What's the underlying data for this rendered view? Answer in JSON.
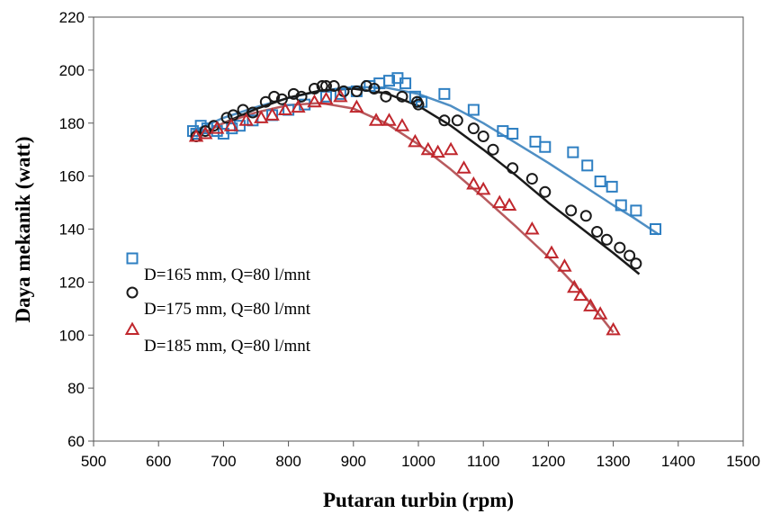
{
  "chart_data": {
    "type": "scatter",
    "title": "",
    "xlabel": "Putaran turbin (rpm)",
    "ylabel": "Daya mekanik (watt)",
    "xlim": [
      500,
      1500
    ],
    "ylim": [
      60,
      220
    ],
    "xticks": [
      500,
      600,
      700,
      800,
      900,
      1000,
      1100,
      1200,
      1300,
      1400,
      1500
    ],
    "yticks": [
      60,
      80,
      100,
      120,
      140,
      160,
      180,
      200,
      220
    ],
    "grid": false,
    "legend_position": "lower-left",
    "series": [
      {
        "name": "D=165 mm, Q=80 l/mnt",
        "marker": "square",
        "color": "#2e7fc2",
        "trend_color": "#4f8fc4",
        "points": [
          [
            653,
            177
          ],
          [
            658,
            176
          ],
          [
            665,
            179
          ],
          [
            675,
            178
          ],
          [
            690,
            177
          ],
          [
            700,
            176
          ],
          [
            713,
            178
          ],
          [
            725,
            179
          ],
          [
            745,
            181
          ],
          [
            775,
            183
          ],
          [
            800,
            185
          ],
          [
            825,
            187
          ],
          [
            858,
            190
          ],
          [
            880,
            191
          ],
          [
            905,
            192
          ],
          [
            925,
            194
          ],
          [
            940,
            195
          ],
          [
            955,
            196
          ],
          [
            968,
            197
          ],
          [
            980,
            195
          ],
          [
            995,
            190
          ],
          [
            1005,
            188
          ],
          [
            1040,
            191
          ],
          [
            1085,
            185
          ],
          [
            1130,
            177
          ],
          [
            1145,
            176
          ],
          [
            1180,
            173
          ],
          [
            1195,
            171
          ],
          [
            1238,
            169
          ],
          [
            1260,
            164
          ],
          [
            1280,
            158
          ],
          [
            1298,
            156
          ],
          [
            1312,
            149
          ],
          [
            1335,
            147
          ],
          [
            1365,
            140
          ]
        ],
        "trend": [
          [
            653,
            177
          ],
          [
            700,
            182
          ],
          [
            750,
            186
          ],
          [
            800,
            189.5
          ],
          [
            850,
            192.2
          ],
          [
            900,
            193.6
          ],
          [
            950,
            193.4
          ],
          [
            1000,
            191
          ],
          [
            1050,
            186.5
          ],
          [
            1100,
            180
          ],
          [
            1150,
            172.5
          ],
          [
            1200,
            165
          ],
          [
            1250,
            157
          ],
          [
            1300,
            149
          ],
          [
            1330,
            144.5
          ],
          [
            1370,
            138
          ]
        ]
      },
      {
        "name": "D=175 mm, Q=80 l/mnt",
        "marker": "circle",
        "color": "#1a1a1a",
        "trend_color": "#1a1a1a",
        "points": [
          [
            658,
            175
          ],
          [
            672,
            177
          ],
          [
            685,
            179
          ],
          [
            705,
            182
          ],
          [
            715,
            183
          ],
          [
            730,
            185
          ],
          [
            745,
            184
          ],
          [
            765,
            188
          ],
          [
            778,
            190
          ],
          [
            790,
            189
          ],
          [
            808,
            191
          ],
          [
            820,
            190
          ],
          [
            840,
            193
          ],
          [
            852,
            194
          ],
          [
            858,
            194
          ],
          [
            870,
            194
          ],
          [
            885,
            192
          ],
          [
            905,
            192
          ],
          [
            920,
            194
          ],
          [
            932,
            193
          ],
          [
            950,
            190
          ],
          [
            975,
            190
          ],
          [
            998,
            188
          ],
          [
            1000,
            187
          ],
          [
            1040,
            181
          ],
          [
            1060,
            181
          ],
          [
            1085,
            178
          ],
          [
            1100,
            175
          ],
          [
            1115,
            170
          ],
          [
            1145,
            163
          ],
          [
            1175,
            159
          ],
          [
            1195,
            154
          ],
          [
            1235,
            147
          ],
          [
            1258,
            145
          ],
          [
            1275,
            139
          ],
          [
            1290,
            136
          ],
          [
            1310,
            133
          ],
          [
            1325,
            130
          ],
          [
            1335,
            127
          ]
        ],
        "trend": [
          [
            658,
            175
          ],
          [
            700,
            180
          ],
          [
            750,
            185.3
          ],
          [
            800,
            189.6
          ],
          [
            850,
            192.3
          ],
          [
            900,
            193
          ],
          [
            950,
            191.3
          ],
          [
            1000,
            186.5
          ],
          [
            1050,
            179
          ],
          [
            1100,
            170
          ],
          [
            1150,
            160.3
          ],
          [
            1200,
            150
          ],
          [
            1250,
            140.5
          ],
          [
            1300,
            131
          ],
          [
            1340,
            123
          ]
        ]
      },
      {
        "name": "D=185 mm, Q=80 l/mnt",
        "marker": "triangle",
        "color": "#c0272d",
        "trend_color": "#b85a5e",
        "points": [
          [
            658,
            175
          ],
          [
            672,
            176
          ],
          [
            690,
            178
          ],
          [
            712,
            179
          ],
          [
            735,
            181
          ],
          [
            758,
            182
          ],
          [
            775,
            183
          ],
          [
            795,
            185
          ],
          [
            815,
            186
          ],
          [
            840,
            188
          ],
          [
            858,
            189
          ],
          [
            880,
            190
          ],
          [
            905,
            186
          ],
          [
            935,
            181
          ],
          [
            955,
            181
          ],
          [
            975,
            179
          ],
          [
            995,
            173
          ],
          [
            1015,
            170
          ],
          [
            1030,
            169
          ],
          [
            1050,
            170
          ],
          [
            1070,
            163
          ],
          [
            1085,
            157
          ],
          [
            1100,
            155
          ],
          [
            1125,
            150
          ],
          [
            1140,
            149
          ],
          [
            1175,
            140
          ],
          [
            1205,
            131
          ],
          [
            1225,
            126
          ],
          [
            1240,
            118
          ],
          [
            1250,
            115
          ],
          [
            1265,
            111
          ],
          [
            1280,
            108
          ],
          [
            1300,
            102
          ]
        ],
        "trend": [
          [
            658,
            175
          ],
          [
            700,
            180
          ],
          [
            750,
            184
          ],
          [
            800,
            186.8
          ],
          [
            850,
            187.6
          ],
          [
            900,
            185.5
          ],
          [
            950,
            180
          ],
          [
            1000,
            172
          ],
          [
            1050,
            162.5
          ],
          [
            1100,
            152
          ],
          [
            1150,
            141
          ],
          [
            1200,
            129.5
          ],
          [
            1250,
            116.5
          ],
          [
            1300,
            101
          ]
        ]
      }
    ]
  }
}
